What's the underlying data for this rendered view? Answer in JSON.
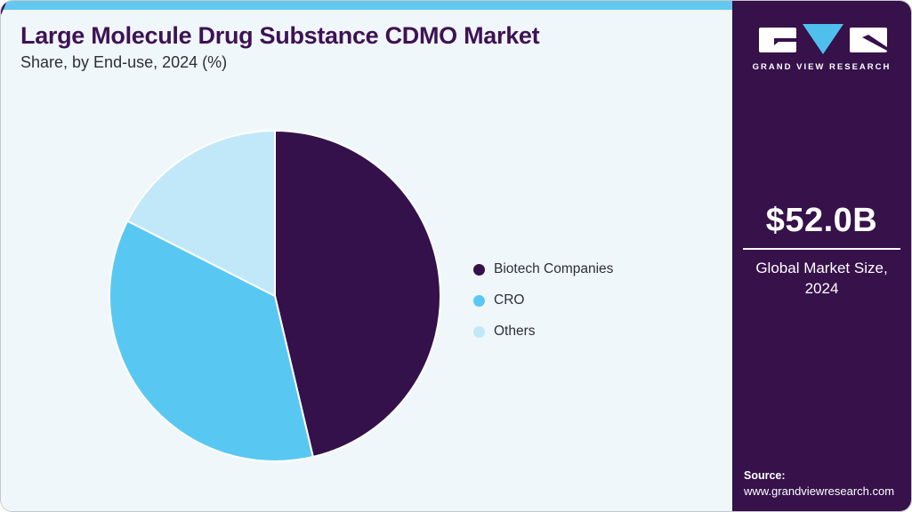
{
  "header": {
    "title": "Large Molecule Drug Substance CDMO Market",
    "subtitle": "Share, by End-use, 2024 (%)"
  },
  "chart_data": {
    "type": "pie",
    "title": "Large Molecule Drug Substance CDMO Market Share, by End-use, 2024 (%)",
    "unit": "%",
    "start_angle_deg": 0,
    "direction": "clockwise",
    "labels_shown": false,
    "legend_position": "right",
    "series": [
      {
        "name": "Biotech Companies",
        "value": 46.3,
        "color": "#35114b"
      },
      {
        "name": "CRO",
        "value": 36.2,
        "color": "#58c8f3"
      },
      {
        "name": "Others",
        "value": 17.5,
        "color": "#c0e8f9"
      }
    ]
  },
  "sidebar": {
    "logo": "grand-view-research-logo",
    "brand": "GRAND VIEW RESEARCH",
    "market_size_value": "$52.0B",
    "market_size_caption": "Global Market Size, 2024",
    "source_label": "Source:",
    "source_url": "www.grandviewresearch.com"
  },
  "colors": {
    "topbar": "#63c8f0",
    "panel_bg": "#f0f7fb",
    "sidebar_bg": "#36114a",
    "title_text": "#3e1254",
    "body_text": "#2e2e38",
    "card_border": "#c6c6cc",
    "logo_triangle": "#4fc0ee",
    "slice_stroke": "#ffffff"
  }
}
